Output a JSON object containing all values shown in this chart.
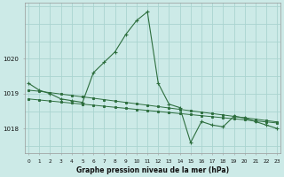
{
  "background_color": "#cceae7",
  "grid_color": "#aad4d0",
  "line_color": "#2d6e3e",
  "xlabel": "Graphe pression niveau de la mer (hPa)",
  "x_ticks": [
    0,
    1,
    2,
    3,
    4,
    5,
    6,
    7,
    8,
    9,
    10,
    11,
    12,
    13,
    14,
    15,
    16,
    17,
    18,
    19,
    20,
    21,
    22,
    23
  ],
  "y_ticks": [
    1018,
    1019,
    1020
  ],
  "ylim": [
    1017.3,
    1021.6
  ],
  "xlim": [
    -0.3,
    23.3
  ],
  "series": {
    "main": [
      1019.3,
      1019.1,
      1019.0,
      1018.85,
      1018.8,
      1018.75,
      1019.6,
      1019.9,
      1020.2,
      1020.7,
      1021.1,
      1021.35,
      1019.3,
      1018.7,
      1018.6,
      1017.6,
      1018.2,
      1018.1,
      1018.05,
      1018.35,
      1018.3,
      1018.2,
      1018.1,
      1018.0
    ],
    "trend1": [
      1019.1,
      1019.07,
      1019.03,
      1018.99,
      1018.95,
      1018.91,
      1018.87,
      1018.83,
      1018.79,
      1018.75,
      1018.71,
      1018.67,
      1018.63,
      1018.59,
      1018.55,
      1018.51,
      1018.47,
      1018.43,
      1018.39,
      1018.35,
      1018.31,
      1018.27,
      1018.23,
      1018.19
    ],
    "trend2": [
      1018.85,
      1018.82,
      1018.79,
      1018.76,
      1018.73,
      1018.7,
      1018.67,
      1018.64,
      1018.61,
      1018.58,
      1018.55,
      1018.52,
      1018.49,
      1018.46,
      1018.43,
      1018.4,
      1018.37,
      1018.34,
      1018.31,
      1018.28,
      1018.25,
      1018.22,
      1018.19,
      1018.16
    ]
  }
}
